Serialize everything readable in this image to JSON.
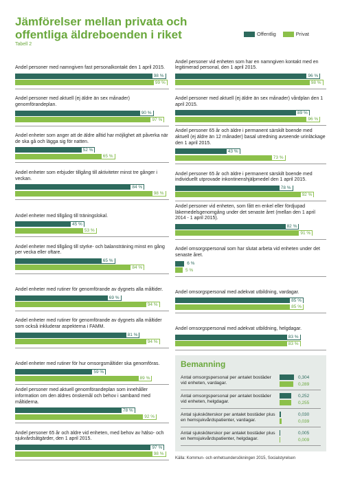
{
  "header": {
    "title": "Jämförelser mellan privata och offentliga äldreboenden i riket",
    "subtitle": "Tabell 2"
  },
  "legend": [
    {
      "name": "Offentlig",
      "color": "#2d6a5d"
    },
    {
      "name": "Privat",
      "color": "#8cc04a"
    }
  ],
  "xlim": [
    0,
    100
  ],
  "columns": [
    [
      {
        "label": "Andel personer med namngiven fast personalkontakt den 1 april 2015.",
        "values": [
          98,
          99
        ],
        "value_labels": [
          "98 %",
          "99 %"
        ]
      },
      {
        "label": "Andel personer med aktuell (ej äldre än sex månader) genomförandeplan.",
        "values": [
          90,
          97
        ],
        "value_labels": [
          "90 %",
          "97 %"
        ]
      },
      {
        "label": "Andel enheter som anger att de äldre alltid har möjlighet att påverka när de ska gå och lägga sig för natten.",
        "values": [
          52,
          65
        ],
        "value_labels": [
          "52 %",
          "65 %"
        ]
      },
      {
        "label": "Andel enheter som erbjuder tillgång till aktiviteter minst tre gånger i veckan.",
        "values": [
          84,
          98
        ],
        "value_labels": [
          "84 %",
          "98 %"
        ]
      },
      {
        "label": "Andel enheter med tillgång till träningslokal.",
        "values": [
          45,
          53
        ],
        "value_labels": [
          "45 %",
          "53 %"
        ]
      },
      {
        "label": "Andel enheter med tillgång till styrke- och balansträning minst en gång per vecka eller oftare.",
        "values": [
          65,
          84
        ],
        "value_labels": [
          "65 %",
          "84 %"
        ]
      },
      {
        "label": "Andel enheter med rutiner för genomförande av dygnets alla måltider.",
        "values": [
          69,
          94
        ],
        "value_labels": [
          "69 %",
          "94 %"
        ]
      },
      {
        "label": "Andel enheter med rutiner för genomförande av dygnets alla måltider som också inkluderar aspekterna i FAMM.",
        "values": [
          81,
          94
        ],
        "value_labels": [
          "81 %",
          "94 %"
        ]
      },
      {
        "label": "Andel enheter med rutiner för hur omsorgsmåltider ska genomföras.",
        "values": [
          59,
          89
        ],
        "value_labels": [
          "59 %",
          "89 %"
        ]
      },
      {
        "label": "Andel personer med aktuell genomförandeplan som innehåller information om den äldres önskemål och behov i samband med måltiderna.",
        "values": [
          78,
          92
        ],
        "value_labels": [
          "78 %",
          "92 %"
        ]
      },
      {
        "label": "Andel personer 65 år och äldre vid enheten, med behov av hälso- och sjukvårdsåtgärder, den 1 april 2015.",
        "values": [
          97,
          98
        ],
        "value_labels": [
          "97 %",
          "98 %"
        ]
      }
    ],
    [
      {
        "label": "Andel personer vid enheten som har en namngiven kontakt med en legitimerad personal, den 1 april 2015.",
        "values": [
          96,
          98
        ],
        "value_labels": [
          "96 %",
          "98 %"
        ]
      },
      {
        "label": "Andel personer med aktuell (ej äldre än sex månader) vårdplan den 1 april 2015.",
        "values": [
          89,
          96
        ],
        "value_labels": [
          "89 %",
          "96 %"
        ]
      },
      {
        "label": "Andel personer 65 år och äldre i permanent särskilt boende med aktuell (ej äldre än 12 månader) basal utredning avseende urinläckage den 1 april 2015.",
        "values": [
          43,
          73
        ],
        "value_labels": [
          "43 %",
          "73 %"
        ]
      },
      {
        "label": "Andel personer 65 år och äldre i permanent särskilt boende med individuellt utprovade inkontinenshjälpmedel den 1 april 2015.",
        "values": [
          78,
          92
        ],
        "value_labels": [
          "78 %",
          "92 %"
        ]
      },
      {
        "label": "Andel personer vid enheten, som fått en enkel eller fördjupad läkemedelsgenomgång under det senaste året (mellan den 1 april 2014 - 1 april 2015).",
        "values": [
          82,
          91
        ],
        "value_labels": [
          "82 %",
          "91 %"
        ]
      },
      {
        "label": "Andel omsorgspersonal som har slutat arbeta vid enheten under det senaste året.",
        "values": [
          6,
          5
        ],
        "value_labels": [
          "6 %",
          "5 %"
        ]
      },
      {
        "label": "Andel omsorgspersonal med adekvat utbildning, vardagar.",
        "values": [
          85,
          85
        ],
        "value_labels": [
          "85 %",
          "85 %"
        ]
      },
      {
        "label": "Andel omsorgspersonal med adekvat utbildning, helgdagar.",
        "values": [
          83,
          83
        ],
        "value_labels": [
          "83 %",
          "83 %"
        ]
      }
    ]
  ],
  "bemanning": {
    "title": "Bemanning",
    "xlim": [
      0,
      0.35
    ],
    "items": [
      {
        "label": "Antal omsorgspersonal per antalet bostäder vid enheten, vardagar.",
        "values": [
          0.304,
          0.289
        ],
        "value_labels": [
          "0,304",
          "0,289"
        ]
      },
      {
        "label": "Antal omsorgspersonal per antalet bostäder vid enheten, helgdagar.",
        "values": [
          0.252,
          0.255
        ],
        "value_labels": [
          "0,252",
          "0,255"
        ]
      },
      {
        "label": "Antal sjuksköterskor per antalet bostäder plus en hemsjukvårdspatienter, vardagar.",
        "values": [
          0.03,
          0.039
        ],
        "value_labels": [
          "0,030",
          "0,039"
        ]
      },
      {
        "label": "Antal sjuksköterskor per antalet bostäder plus en hemsjukvårdspatienter, helgdagar.",
        "values": [
          0.005,
          0.009
        ],
        "value_labels": [
          "0,005",
          "0,009"
        ]
      }
    ]
  },
  "source": "Källa: Kommun- och enhetsundersökningen 2015, Socialstyrelsen"
}
